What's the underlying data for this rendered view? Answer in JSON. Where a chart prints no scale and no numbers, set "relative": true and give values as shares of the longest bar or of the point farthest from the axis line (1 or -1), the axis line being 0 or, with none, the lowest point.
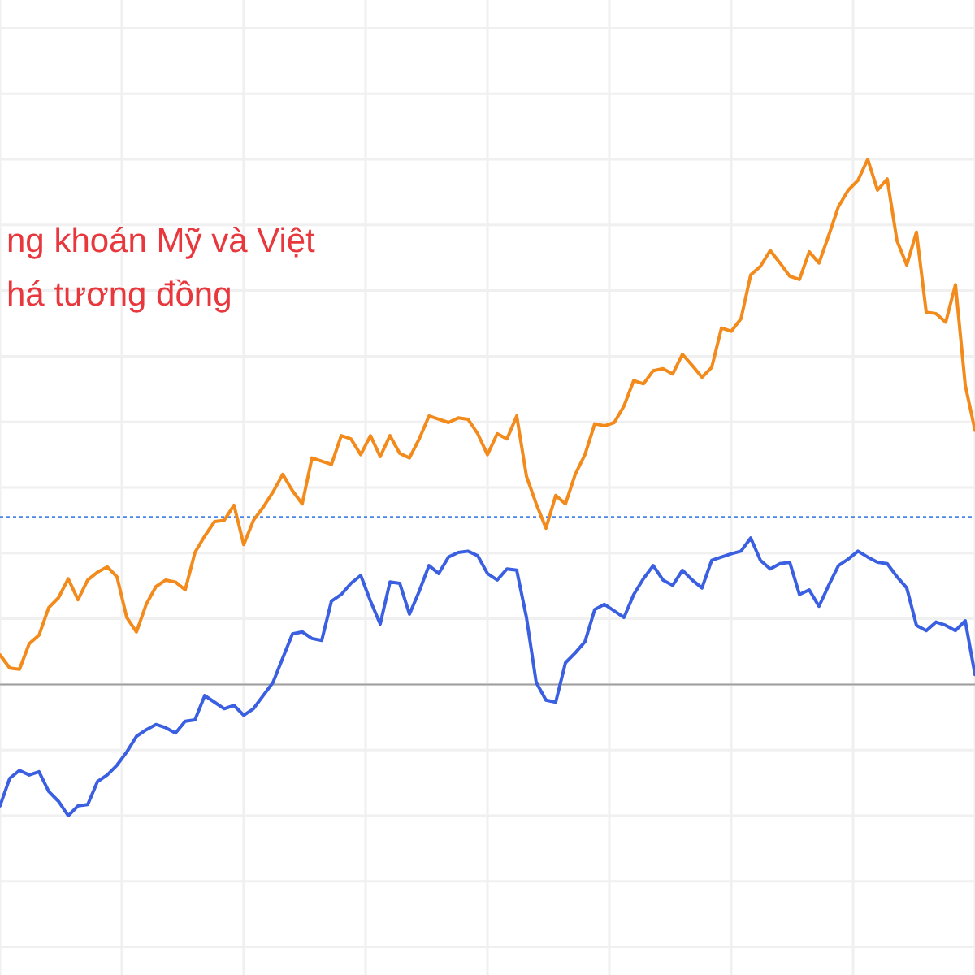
{
  "chart_data": {
    "type": "line",
    "relative": true,
    "grid": true,
    "marker": "none",
    "categories": [
      null,
      null,
      null,
      null,
      null,
      null,
      null,
      null,
      null,
      null,
      null,
      null,
      null,
      null,
      null,
      null,
      null,
      null,
      null,
      null,
      null,
      null,
      null,
      null,
      null,
      null,
      null,
      null,
      null,
      null,
      null,
      null,
      null,
      null,
      null,
      null,
      null,
      null,
      null,
      null,
      null,
      null,
      null,
      null,
      null,
      null,
      null,
      null,
      null,
      null,
      null,
      null,
      null,
      null,
      null,
      null,
      null,
      null,
      null,
      null,
      null,
      null,
      null,
      null,
      null,
      null,
      null,
      null,
      null,
      null,
      null,
      null,
      null,
      null,
      null,
      null,
      null,
      null,
      null,
      null,
      null,
      null,
      null,
      null,
      null,
      null,
      null,
      null,
      null,
      null,
      null,
      null,
      null,
      null,
      null,
      null,
      null,
      null,
      null,
      null,
      null
    ],
    "series": [
      {
        "color": "#f28a1c",
        "values": [
          0.245,
          0.225,
          0.223,
          0.262,
          0.275,
          0.317,
          0.332,
          0.361,
          0.329,
          0.359,
          0.371,
          0.379,
          0.364,
          0.302,
          0.28,
          0.322,
          0.349,
          0.359,
          0.356,
          0.344,
          0.401,
          0.426,
          0.448,
          0.45,
          0.473,
          0.413,
          0.45,
          0.47,
          0.493,
          0.52,
          0.495,
          0.475,
          0.545,
          0.54,
          0.535,
          0.579,
          0.574,
          0.55,
          0.579,
          0.547,
          0.579,
          0.552,
          0.545,
          0.574,
          0.609,
          0.604,
          0.599,
          0.606,
          0.604,
          0.582,
          0.55,
          0.582,
          0.574,
          0.609,
          0.517,
          0.475,
          0.438,
          0.488,
          0.475,
          0.52,
          0.55,
          0.597,
          0.594,
          0.599,
          0.624,
          0.663,
          0.658,
          0.678,
          0.681,
          0.673,
          0.703,
          0.686,
          0.668,
          0.683,
          0.743,
          0.738,
          0.757,
          0.824,
          0.837,
          0.861,
          0.842,
          0.822,
          0.817,
          0.859,
          0.842,
          0.884,
          0.928,
          0.953,
          0.968,
          1,
          0.953,
          0.97,
          0.876,
          0.839,
          0.889,
          0.767,
          0.765,
          0.752,
          0.809,
          0.656,
          0.587
        ]
      },
      {
        "color": "#3a5fe0",
        "values": [
          0.015,
          0.057,
          0.069,
          0.062,
          0.067,
          0.037,
          0.022,
          0,
          0.015,
          0.017,
          0.052,
          0.062,
          0.077,
          0.097,
          0.121,
          0.131,
          0.139,
          0.134,
          0.126,
          0.144,
          0.146,
          0.183,
          0.173,
          0.163,
          0.168,
          0.153,
          0.163,
          0.183,
          0.203,
          0.24,
          0.277,
          0.28,
          0.27,
          0.267,
          0.327,
          0.337,
          0.354,
          0.366,
          0.327,
          0.292,
          0.356,
          0.354,
          0.307,
          0.342,
          0.381,
          0.369,
          0.394,
          0.401,
          0.403,
          0.396,
          0.369,
          0.359,
          0.376,
          0.374,
          0.302,
          0.203,
          0.176,
          0.173,
          0.233,
          0.248,
          0.265,
          0.314,
          0.322,
          0.312,
          0.302,
          0.337,
          0.361,
          0.381,
          0.359,
          0.351,
          0.374,
          0.359,
          0.347,
          0.389,
          0.394,
          0.399,
          0.403,
          0.423,
          0.389,
          0.376,
          0.384,
          0.386,
          0.337,
          0.344,
          0.319,
          0.351,
          0.381,
          0.391,
          0.403,
          0.394,
          0.386,
          0.384,
          0.364,
          0.347,
          0.29,
          0.282,
          0.295,
          0.29,
          0.282,
          0.297,
          0.215
        ]
      }
    ],
    "ref_lines": [
      {
        "axis": "y",
        "value": 0.455,
        "color": "#4a86e8",
        "line_style": "dotted"
      },
      {
        "axis": "y",
        "value": 0.2,
        "color": "#a0a0a0",
        "line_style": "solid"
      }
    ],
    "annotations": [
      "ng khoán Mỹ và Việt",
      "há tương đồng"
    ]
  }
}
